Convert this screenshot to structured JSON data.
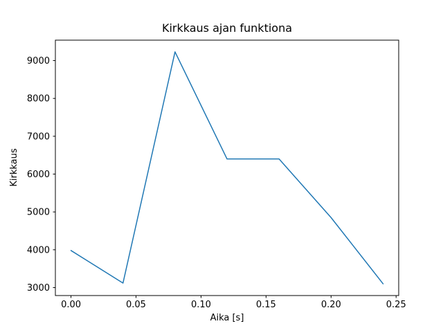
{
  "chart_data": {
    "type": "line",
    "title": "Kirkkaus ajan funktiona",
    "xlabel": "Aika [s]",
    "ylabel": "Kirkkaus",
    "x": [
      0.0,
      0.04,
      0.08,
      0.12,
      0.16,
      0.2,
      0.24
    ],
    "y": [
      3980,
      3120,
      9230,
      6400,
      6400,
      4850,
      3100
    ],
    "xlim": [
      -0.012,
      0.252
    ],
    "ylim": [
      2790,
      9540
    ],
    "xticks": [
      0.0,
      0.05,
      0.1,
      0.15,
      0.2,
      0.25
    ],
    "yticks": [
      3000,
      4000,
      5000,
      6000,
      7000,
      8000,
      9000
    ],
    "line_color": "#1f77b4",
    "axis_color": "#000000",
    "background_color": "#ffffff",
    "grid": false,
    "legend": null
  }
}
